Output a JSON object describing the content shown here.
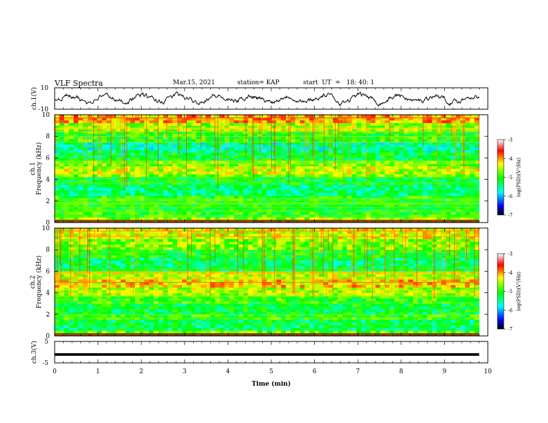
{
  "header": {
    "title": "VLF Spectra",
    "date": "Mar.15, 2021",
    "station": "station= KAP",
    "start": "start  UT  =   18: 40: 1"
  },
  "chart_data": [
    {
      "type": "line",
      "name": "ch1-waveform",
      "ylabel": "ch.1(V)",
      "ylim": [
        -10,
        10
      ],
      "yticks": [
        "10",
        "-10"
      ],
      "xlim": [
        0,
        10
      ],
      "approx_range": [
        -5,
        5
      ],
      "color": "#000000"
    },
    {
      "type": "heatmap",
      "name": "ch1-spectrogram",
      "ylabel_channel": "ch.1",
      "ylabel": "Frequency (kHz)",
      "ylim": [
        0,
        10
      ],
      "yticks": [
        "0",
        "2",
        "4",
        "6",
        "8",
        "10"
      ],
      "xlim": [
        0,
        10
      ],
      "data_extent_min": 9.8,
      "colorbar": {
        "label": "log(PSD)(V²/Hz)",
        "range": [
          -7,
          -3
        ],
        "ticks": [
          "-3",
          "-4",
          "-5",
          "-6",
          "-7"
        ]
      },
      "bands": [
        {
          "f": [
            0,
            0.4
          ],
          "v": -4.6
        },
        {
          "f": [
            0.4,
            1
          ],
          "v": -5.0
        },
        {
          "f": [
            1,
            2
          ],
          "v": -5.1
        },
        {
          "f": [
            2,
            2.6
          ],
          "v": -5.0
        },
        {
          "f": [
            2.6,
            3.4
          ],
          "v": -5.4
        },
        {
          "f": [
            3.4,
            4.2
          ],
          "v": -5.2
        },
        {
          "f": [
            4.2,
            4.6
          ],
          "v": -4.7
        },
        {
          "f": [
            4.6,
            5.2
          ],
          "v": -4.5
        },
        {
          "f": [
            5.2,
            5.8
          ],
          "v": -4.8
        },
        {
          "f": [
            5.8,
            6.6
          ],
          "v": -5.2
        },
        {
          "f": [
            6.6,
            7.4
          ],
          "v": -5.5
        },
        {
          "f": [
            7.4,
            8.4
          ],
          "v": -5.0
        },
        {
          "f": [
            8.4,
            9.2
          ],
          "v": -4.6
        },
        {
          "f": [
            9.2,
            10
          ],
          "v": -4.1
        }
      ]
    },
    {
      "type": "heatmap",
      "name": "ch2-spectrogram",
      "ylabel_channel": "ch.2",
      "ylabel": "Frequency (kHz)",
      "ylim": [
        0,
        10
      ],
      "yticks": [
        "0",
        "2",
        "4",
        "6",
        "8",
        "10"
      ],
      "xlim": [
        0,
        10
      ],
      "data_extent_min": 9.8,
      "colorbar": {
        "label": "log(PSD)(V²/Hz)",
        "range": [
          -7,
          -3
        ],
        "ticks": [
          "-3",
          "-4",
          "-5",
          "-6",
          "-7"
        ]
      },
      "bands": [
        {
          "f": [
            0,
            0.4
          ],
          "v": -4.8
        },
        {
          "f": [
            0.4,
            1.4
          ],
          "v": -5.3
        },
        {
          "f": [
            1.4,
            2
          ],
          "v": -5.0
        },
        {
          "f": [
            2,
            3
          ],
          "v": -5.2
        },
        {
          "f": [
            3,
            3.8
          ],
          "v": -5.0
        },
        {
          "f": [
            3.8,
            4.4
          ],
          "v": -4.6
        },
        {
          "f": [
            4.4,
            5.2
          ],
          "v": -4.2
        },
        {
          "f": [
            5.2,
            6
          ],
          "v": -4.5
        },
        {
          "f": [
            6,
            7.2
          ],
          "v": -5.3
        },
        {
          "f": [
            7.2,
            8
          ],
          "v": -5.1
        },
        {
          "f": [
            8,
            9
          ],
          "v": -4.7
        },
        {
          "f": [
            9,
            10
          ],
          "v": -4.4
        }
      ]
    },
    {
      "type": "line",
      "name": "ch3-waveform",
      "ylabel": "ch.3(V)",
      "ylim": [
        -5,
        5
      ],
      "yticks": [
        "5",
        "-5"
      ],
      "xlim": [
        0,
        10
      ],
      "approx_range": [
        -1.7,
        -0.5
      ],
      "color": "#000000"
    }
  ],
  "xaxis": {
    "label": "Time (min)",
    "ticks": [
      "0",
      "1",
      "2",
      "3",
      "4",
      "5",
      "6",
      "7",
      "8",
      "9",
      "10"
    ]
  }
}
